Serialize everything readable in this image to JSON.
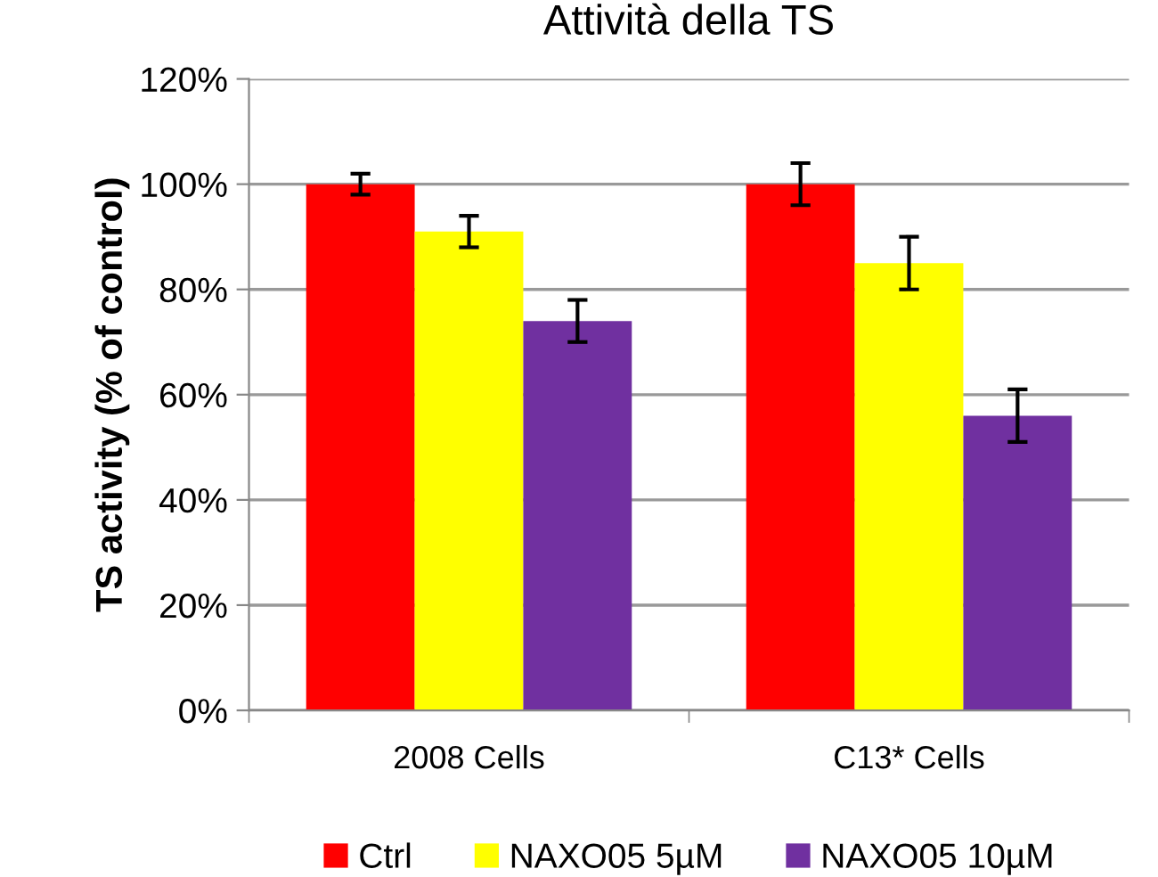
{
  "chart_data": {
    "type": "bar",
    "title": "Attività della TS",
    "ylabel": "TS activity (% of control)",
    "categories": [
      "2008 Cells",
      "C13* Cells"
    ],
    "series": [
      {
        "name": "Ctrl",
        "color": "#ff0000",
        "values": [
          100,
          100
        ],
        "errors": [
          2,
          4
        ]
      },
      {
        "name": "NAXO05 5µM",
        "color": "#ffff00",
        "values": [
          91,
          85
        ],
        "errors": [
          3,
          5
        ]
      },
      {
        "name": "NAXO05 10µM",
        "color": "#7030a0",
        "values": [
          74,
          56
        ],
        "errors": [
          4,
          5
        ]
      }
    ],
    "ylim": [
      0,
      120
    ],
    "yticks": [
      {
        "value": 0,
        "label": "0%"
      },
      {
        "value": 20,
        "label": "20%"
      },
      {
        "value": 40,
        "label": "40%"
      },
      {
        "value": 60,
        "label": "60%"
      },
      {
        "value": 80,
        "label": "80%"
      },
      {
        "value": 100,
        "label": "100%"
      },
      {
        "value": 120,
        "label": "120%"
      }
    ],
    "grid": "y",
    "legend": "bottom"
  }
}
